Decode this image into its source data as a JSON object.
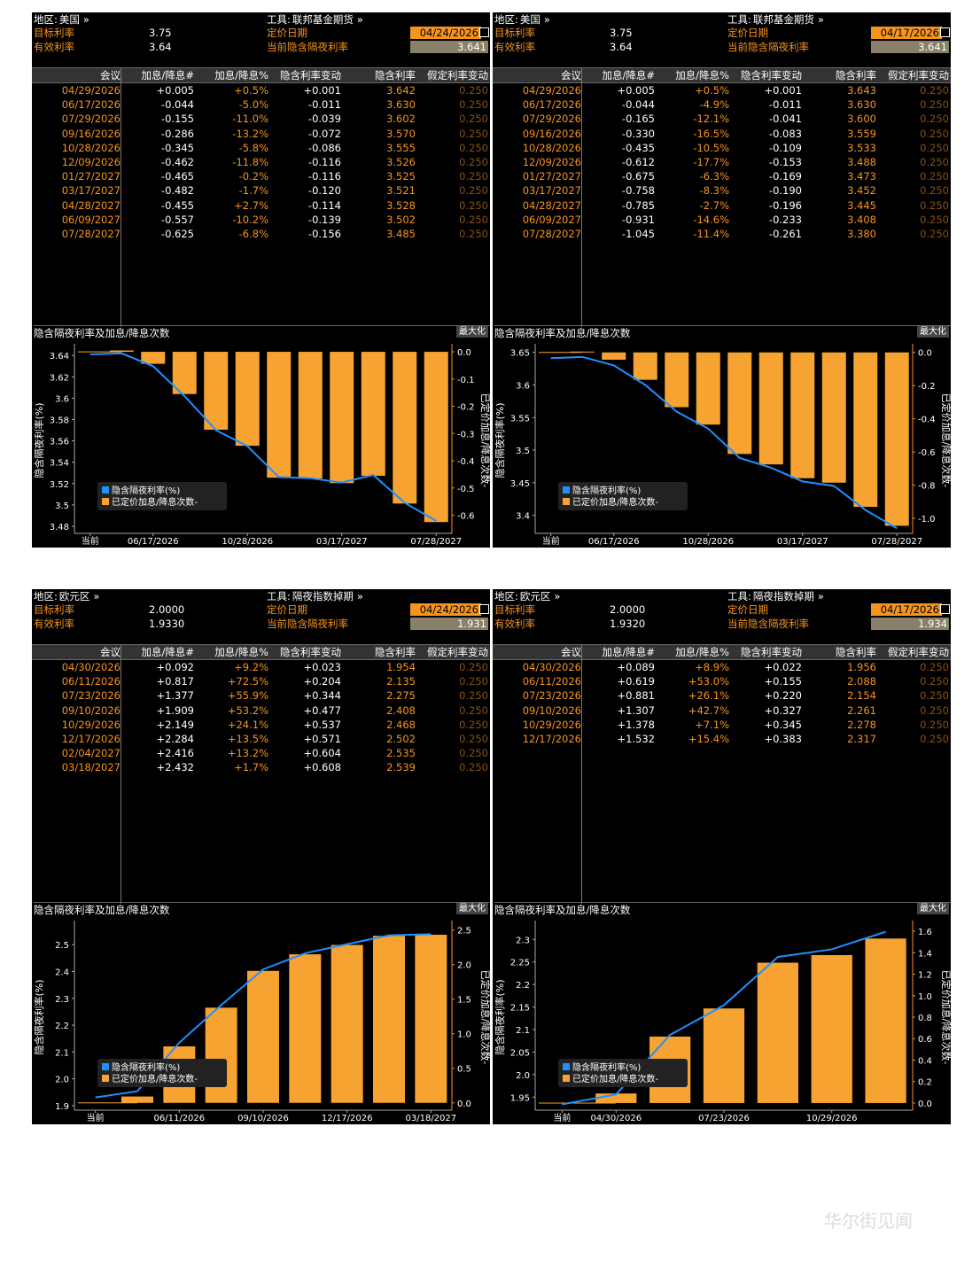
{
  "labels": {
    "region": "地区:",
    "instrument": "工具:",
    "target_rate": "目标利率",
    "effective_rate": "有效利率",
    "pricing_date": "定价日期",
    "current_implied": "当前隐含隔夜利率",
    "arrow": "»",
    "col_meeting": "会议",
    "col_hikes": "加息/降息#",
    "col_pct": "加息/降息%",
    "col_change": "隐含利率变动",
    "col_implied": "隐含利率",
    "col_assumed": "假定利率变动",
    "chart_title": "隐含隔夜利率及加息/降息次数",
    "maximize": "最大化",
    "legend_rate": "隐含隔夜利率(%)",
    "legend_hikes": "已定价加息/降息次数-",
    "left_axis": "隐含隔夜利率(%)",
    "right_axis": "已定价加息/降息次数-",
    "current": "当前"
  },
  "panels": [
    {
      "region": "美国",
      "instrument": "联邦基金期货",
      "target": "3.75",
      "effective": "3.64",
      "pricing_date": "04/24/2026",
      "implied_current": "3.641",
      "rows": [
        [
          "04/29/2026",
          "+0.005",
          "+0.5%",
          "+0.001",
          "3.642",
          "0.250"
        ],
        [
          "06/17/2026",
          "-0.044",
          "-5.0%",
          "-0.011",
          "3.630",
          "0.250"
        ],
        [
          "07/29/2026",
          "-0.155",
          "-11.0%",
          "-0.039",
          "3.602",
          "0.250"
        ],
        [
          "09/16/2026",
          "-0.286",
          "-13.2%",
          "-0.072",
          "3.570",
          "0.250"
        ],
        [
          "10/28/2026",
          "-0.345",
          "-5.8%",
          "-0.086",
          "3.555",
          "0.250"
        ],
        [
          "12/09/2026",
          "-0.462",
          "-11.8%",
          "-0.116",
          "3.526",
          "0.250"
        ],
        [
          "01/27/2027",
          "-0.465",
          "-0.2%",
          "-0.116",
          "3.525",
          "0.250"
        ],
        [
          "03/17/2027",
          "-0.482",
          "-1.7%",
          "-0.120",
          "3.521",
          "0.250"
        ],
        [
          "04/28/2027",
          "-0.455",
          "+2.7%",
          "-0.114",
          "3.528",
          "0.250"
        ],
        [
          "06/09/2027",
          "-0.557",
          "-10.2%",
          "-0.139",
          "3.502",
          "0.250"
        ],
        [
          "07/28/2027",
          "-0.625",
          "-6.8%",
          "-0.156",
          "3.485",
          "0.250"
        ]
      ],
      "chart": {
        "left_ticks": [
          "3.64",
          "3.62",
          "3.6",
          "3.58",
          "3.56",
          "3.54",
          "3.52",
          "3.5",
          "3.48"
        ],
        "left_min": 3.475,
        "left_max": 3.646,
        "right_ticks": [
          "0.0",
          "-0.1",
          "-0.2",
          "-0.3",
          "-0.4",
          "-0.5",
          "-0.6"
        ],
        "right_min": -0.66,
        "right_max": 0.01,
        "x_labels": [
          "当前",
          "06/17/2026",
          "10/28/2026",
          "03/17/2027",
          "07/28/2027"
        ],
        "current_rate": 3.641
      }
    },
    {
      "region": "美国",
      "instrument": "联邦基金期货",
      "target": "3.75",
      "effective": "3.64",
      "pricing_date": "04/17/2026",
      "implied_current": "3.641",
      "rows": [
        [
          "04/29/2026",
          "+0.005",
          "+0.5%",
          "+0.001",
          "3.643",
          "0.250"
        ],
        [
          "06/17/2026",
          "-0.044",
          "-4.9%",
          "-0.011",
          "3.630",
          "0.250"
        ],
        [
          "07/29/2026",
          "-0.165",
          "-12.1%",
          "-0.041",
          "3.600",
          "0.250"
        ],
        [
          "09/16/2026",
          "-0.330",
          "-16.5%",
          "-0.083",
          "3.559",
          "0.250"
        ],
        [
          "10/28/2026",
          "-0.435",
          "-10.5%",
          "-0.109",
          "3.533",
          "0.250"
        ],
        [
          "12/09/2026",
          "-0.612",
          "-17.7%",
          "-0.153",
          "3.488",
          "0.250"
        ],
        [
          "01/27/2027",
          "-0.675",
          "-6.3%",
          "-0.169",
          "3.473",
          "0.250"
        ],
        [
          "03/17/2027",
          "-0.758",
          "-8.3%",
          "-0.190",
          "3.452",
          "0.250"
        ],
        [
          "04/28/2027",
          "-0.785",
          "-2.7%",
          "-0.196",
          "3.445",
          "0.250"
        ],
        [
          "06/09/2027",
          "-0.931",
          "-14.6%",
          "-0.233",
          "3.408",
          "0.250"
        ],
        [
          "07/28/2027",
          "-1.045",
          "-11.4%",
          "-0.261",
          "3.380",
          "0.250"
        ]
      ],
      "chart": {
        "left_ticks": [
          "3.65",
          "3.6",
          "3.55",
          "3.5",
          "3.45",
          "3.4"
        ],
        "left_min": 3.375,
        "left_max": 3.655,
        "right_ticks": [
          "0.0",
          "-0.2",
          "-0.4",
          "-0.6",
          "-0.8",
          "-1.0"
        ],
        "right_min": -1.08,
        "right_max": 0.02,
        "x_labels": [
          "当前",
          "06/17/2026",
          "10/28/2026",
          "03/17/2027",
          "07/28/2027"
        ],
        "current_rate": 3.641
      }
    },
    {
      "region": "欧元区",
      "instrument": "隔夜指数掉期",
      "target": "2.0000",
      "effective": "1.9330",
      "pricing_date": "04/24/2026",
      "implied_current": "1.931",
      "rows": [
        [
          "04/30/2026",
          "+0.092",
          "+9.2%",
          "+0.023",
          "1.954",
          "0.250"
        ],
        [
          "06/11/2026",
          "+0.817",
          "+72.5%",
          "+0.204",
          "2.135",
          "0.250"
        ],
        [
          "07/23/2026",
          "+1.377",
          "+55.9%",
          "+0.344",
          "2.275",
          "0.250"
        ],
        [
          "09/10/2026",
          "+1.909",
          "+53.2%",
          "+0.477",
          "2.408",
          "0.250"
        ],
        [
          "10/29/2026",
          "+2.149",
          "+24.1%",
          "+0.537",
          "2.468",
          "0.250"
        ],
        [
          "12/17/2026",
          "+2.284",
          "+13.5%",
          "+0.571",
          "2.502",
          "0.250"
        ],
        [
          "02/04/2027",
          "+2.416",
          "+13.2%",
          "+0.604",
          "2.535",
          "0.250"
        ],
        [
          "03/18/2027",
          "+2.432",
          "+1.7%",
          "+0.608",
          "2.539",
          "0.250"
        ]
      ],
      "chart": {
        "left_ticks": [
          "2.5",
          "2.4",
          "2.3",
          "2.2",
          "2.1",
          "2.0",
          "1.9"
        ],
        "left_min": 1.89,
        "left_max": 2.57,
        "right_ticks": [
          "2.5",
          "2.0",
          "1.5",
          "1.0",
          "0.5",
          "0.0"
        ],
        "right_min": -0.08,
        "right_max": 2.56,
        "x_labels": [
          "当前",
          "06/11/2026",
          "09/10/2026",
          "12/17/2026",
          "03/18/2027"
        ],
        "current_rate": 1.931
      }
    },
    {
      "region": "欧元区",
      "instrument": "隔夜指数掉期",
      "target": "2.0000",
      "effective": "1.9320",
      "pricing_date": "04/17/2026",
      "implied_current": "1.934",
      "rows": [
        [
          "04/30/2026",
          "+0.089",
          "+8.9%",
          "+0.022",
          "1.956",
          "0.250"
        ],
        [
          "06/11/2026",
          "+0.619",
          "+53.0%",
          "+0.155",
          "2.088",
          "0.250"
        ],
        [
          "07/23/2026",
          "+0.881",
          "+26.1%",
          "+0.220",
          "2.154",
          "0.250"
        ],
        [
          "09/10/2026",
          "+1.307",
          "+42.7%",
          "+0.327",
          "2.261",
          "0.250"
        ],
        [
          "10/29/2026",
          "+1.378",
          "+7.1%",
          "+0.345",
          "2.278",
          "0.250"
        ],
        [
          "12/17/2026",
          "+1.532",
          "+15.4%",
          "+0.383",
          "2.317",
          "0.250"
        ]
      ],
      "chart": {
        "left_ticks": [
          "2.3",
          "2.25",
          "2.2",
          "2.15",
          "2.1",
          "2.05",
          "2.0",
          "1.95"
        ],
        "left_min": 1.925,
        "left_max": 2.33,
        "right_ticks": [
          "1.6",
          "1.4",
          "1.2",
          "1.0",
          "0.8",
          "0.6",
          "0.4",
          "0.2",
          "0.0"
        ],
        "right_min": -0.05,
        "right_max": 1.65,
        "x_labels": [
          "当前",
          "04/30/2026",
          "07/23/2026",
          "10/29/2026"
        ],
        "current_rate": 1.934
      }
    }
  ],
  "watermark": "华尔街见闻",
  "colors": {
    "orange": "#f7941d",
    "bar": "#f7a332",
    "line": "#1e90ff",
    "bg": "#000000"
  }
}
